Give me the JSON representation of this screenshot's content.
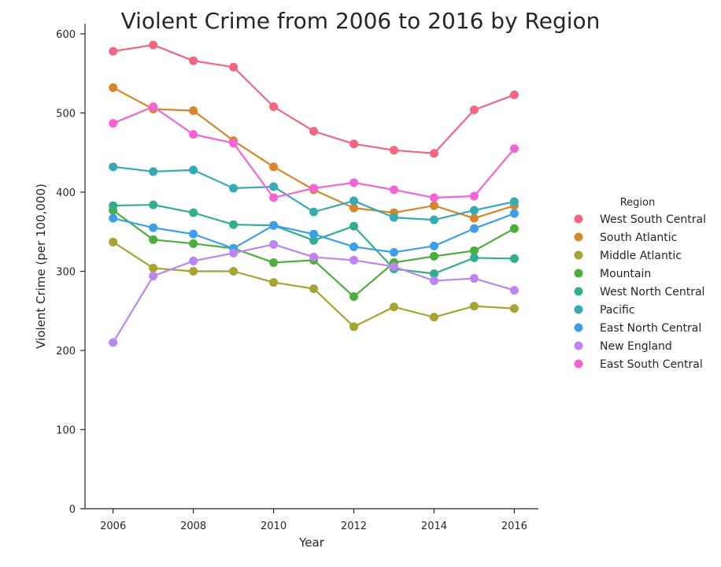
{
  "chart_data": {
    "type": "line",
    "title": "Violent Crime from 2006 to 2016 by Region",
    "xlabel": "Year",
    "ylabel": "Violent Crime (per 100,000)",
    "xlim": [
      2005.3,
      2016.6
    ],
    "ylim": [
      0,
      600
    ],
    "xticks": [
      2006,
      2008,
      2010,
      2012,
      2014,
      2016
    ],
    "yticks": [
      0,
      100,
      200,
      300,
      400,
      500,
      600
    ],
    "grid": false,
    "legend_title": "Region",
    "legend_position": "right",
    "x": [
      2006,
      2007,
      2008,
      2009,
      2010,
      2011,
      2012,
      2013,
      2014,
      2015,
      2016
    ],
    "series": [
      {
        "name": "West South Central",
        "color": "#f0677f",
        "values": [
          578,
          586,
          566,
          558,
          508,
          477,
          461,
          453,
          449,
          504,
          523
        ]
      },
      {
        "name": "South Atlantic",
        "color": "#d6872c",
        "values": [
          532,
          505,
          503,
          465,
          432,
          403,
          380,
          374,
          383,
          367,
          383
        ]
      },
      {
        "name": "Middle Atlantic",
        "color": "#a8a431",
        "values": [
          337,
          304,
          300,
          300,
          286,
          278,
          230,
          255,
          242,
          256,
          253
        ]
      },
      {
        "name": "Mountain",
        "color": "#4cae3b",
        "values": [
          377,
          340,
          335,
          329,
          311,
          314,
          268,
          311,
          319,
          326,
          354
        ]
      },
      {
        "name": "West North Central",
        "color": "#33ae8c",
        "values": [
          383,
          384,
          374,
          359,
          358,
          339,
          357,
          303,
          297,
          317,
          316
        ]
      },
      {
        "name": "Pacific",
        "color": "#36aab5",
        "values": [
          432,
          426,
          428,
          405,
          407,
          375,
          389,
          368,
          365,
          377,
          388
        ]
      },
      {
        "name": "East North Central",
        "color": "#3c9fe8",
        "values": [
          367,
          355,
          347,
          329,
          358,
          347,
          331,
          324,
          332,
          354,
          373
        ]
      },
      {
        "name": "New England",
        "color": "#bd85f1",
        "values": [
          210,
          294,
          313,
          323,
          334,
          318,
          314,
          306,
          288,
          291,
          276
        ]
      },
      {
        "name": "East South Central",
        "color": "#f564d4",
        "values": [
          487,
          508,
          473,
          462,
          393,
          405,
          412,
          403,
          393,
          395,
          455
        ]
      }
    ]
  }
}
